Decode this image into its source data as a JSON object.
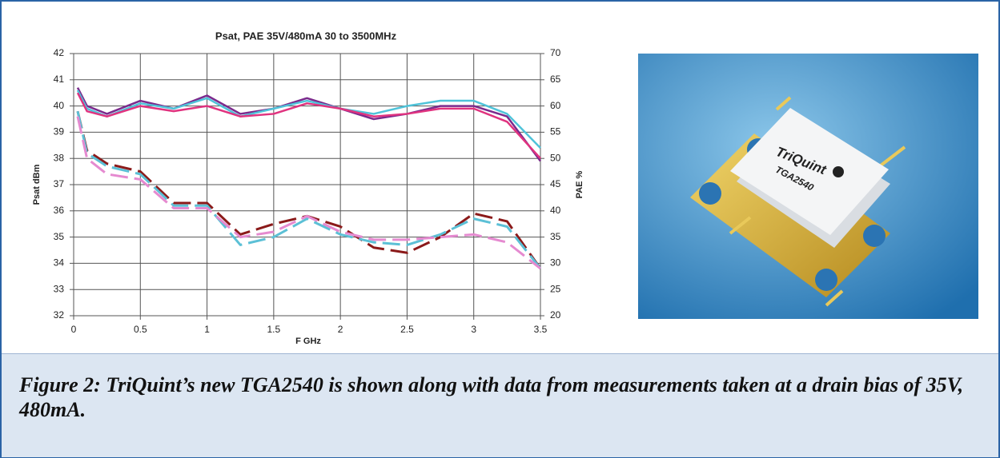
{
  "chart_data": {
    "type": "line",
    "title": "Psat, PAE 35V/480mA 30 to 3500MHz",
    "x_label": "F GHz",
    "y_label": "Psat dBm",
    "y2_label": "PAE %",
    "x": [
      0.03,
      0.1,
      0.25,
      0.5,
      0.75,
      1.0,
      1.25,
      1.5,
      1.75,
      2.0,
      2.25,
      2.5,
      2.75,
      3.0,
      3.25,
      3.5
    ],
    "xlim": [
      0,
      3.5
    ],
    "xticks": [
      0,
      0.5,
      1,
      1.5,
      2,
      2.5,
      3,
      3.5
    ],
    "ylim": [
      32,
      42
    ],
    "yticks": [
      32,
      33,
      34,
      35,
      36,
      37,
      38,
      39,
      40,
      41,
      42
    ],
    "y2lim": [
      20,
      70
    ],
    "y2ticks": [
      20,
      25,
      30,
      35,
      40,
      45,
      50,
      55,
      60,
      65,
      70
    ],
    "grid": true,
    "series": [
      {
        "color": "#7b2a8c",
        "style": "solid",
        "values": [
          40.7,
          40.0,
          39.7,
          40.2,
          39.9,
          40.4,
          39.7,
          39.9,
          40.3,
          39.9,
          39.5,
          39.7,
          40.0,
          40.0,
          39.6,
          37.9
        ]
      },
      {
        "color": "#4fc3d9",
        "style": "solid",
        "values": [
          40.6,
          39.9,
          39.6,
          40.1,
          39.9,
          40.3,
          39.6,
          39.9,
          40.2,
          39.9,
          39.7,
          40.0,
          40.2,
          40.2,
          39.7,
          38.4
        ]
      },
      {
        "color": "#e0337f",
        "style": "solid",
        "values": [
          40.5,
          39.8,
          39.6,
          40.0,
          39.8,
          40.0,
          39.6,
          39.7,
          40.1,
          39.9,
          39.6,
          39.7,
          39.9,
          39.9,
          39.4,
          38.0
        ]
      },
      {
        "color": "#8b1a1a",
        "style": "dashed",
        "axis": "y2",
        "values": [
          59,
          51.5,
          49,
          47.5,
          41.5,
          41.5,
          35.5,
          37.5,
          39,
          37,
          33,
          32,
          35,
          39.5,
          38,
          29
        ]
      },
      {
        "color": "#5cc0d6",
        "style": "dashed",
        "axis": "y2",
        "values": [
          59,
          51,
          48.5,
          47,
          41,
          41,
          33.5,
          35,
          38.5,
          35.5,
          34,
          33.5,
          35.5,
          38.5,
          37,
          29
        ]
      },
      {
        "color": "#e58ad0",
        "style": "dashed",
        "axis": "y2",
        "values": [
          58,
          50,
          47,
          46,
          40.5,
          40.5,
          35,
          36,
          39,
          36,
          34.5,
          34.5,
          35,
          35.5,
          34,
          29
        ]
      }
    ]
  },
  "figure": {
    "caption": "Figure 2: TriQuint’s new TGA2540 is shown along with data from measurements taken at a drain bias of 35V, 480mA.",
    "photo_labels": [
      "TriQuint",
      "TGA2540"
    ]
  }
}
